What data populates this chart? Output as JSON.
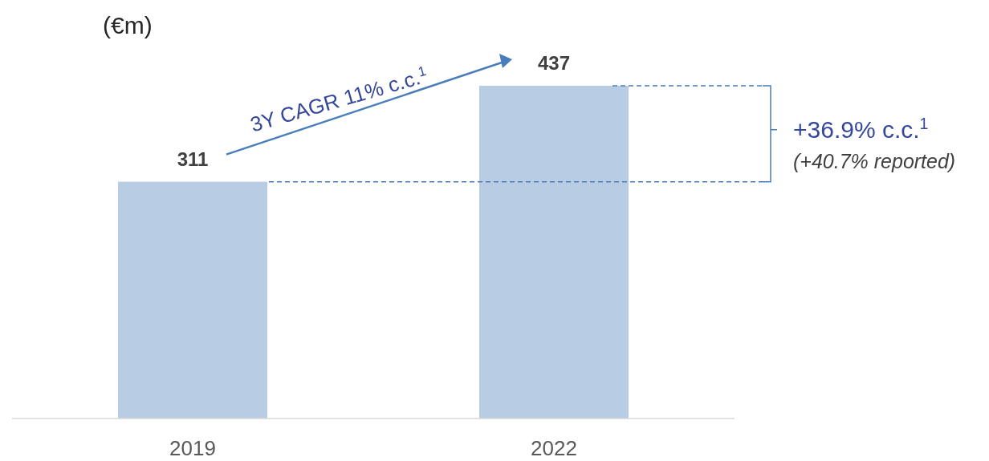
{
  "chart_data": {
    "type": "bar",
    "ylabel": "(€m)",
    "categories": [
      "2019",
      "2022"
    ],
    "values": [
      311,
      437
    ],
    "color": "#b8cce4",
    "data_labels": true,
    "ref_lines": [
      {
        "axis": "y",
        "value": 311,
        "color": "#4a7ebb",
        "line_style": "dashed"
      },
      {
        "axis": "y",
        "value": 437,
        "color": "#4a7ebb",
        "line_style": "dashed"
      }
    ],
    "annotations": [
      "3Y CAGR 11% c.c.$^{1}$",
      "+36.9% c.c.$^{1}$",
      "(+40.7% reported)"
    ]
  }
}
